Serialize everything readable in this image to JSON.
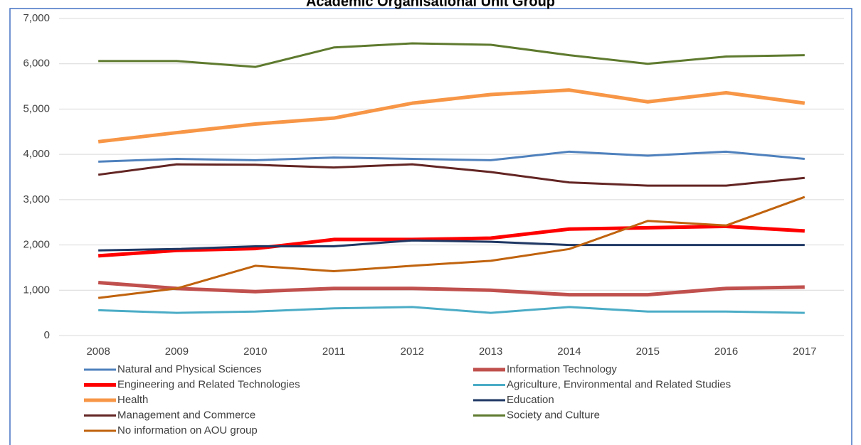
{
  "chart_data": {
    "type": "line",
    "title": "Academic Organisational Unit Group",
    "categories": [
      "2008",
      "2009",
      "2010",
      "2011",
      "2012",
      "2013",
      "2014",
      "2015",
      "2016",
      "2017"
    ],
    "ylim": [
      0,
      7000
    ],
    "yticks": [
      0,
      {
        "value": 1000,
        "label": "1,000"
      },
      {
        "value": 2000,
        "label": "2,000"
      },
      {
        "value": 3000,
        "label": "3,000"
      },
      {
        "value": 4000,
        "label": "4,000"
      },
      {
        "value": 5000,
        "label": "5,000"
      },
      {
        "value": 6000,
        "label": "6,000"
      },
      {
        "value": 7000,
        "label": "7,000"
      }
    ],
    "grid": true,
    "legend": "bottom",
    "series": [
      {
        "name": "Natural and Physical Sciences",
        "color": "#4f81bd",
        "width": 3,
        "values": [
          3840,
          3900,
          3870,
          3930,
          3900,
          3870,
          4060,
          3970,
          4060,
          3900
        ]
      },
      {
        "name": "Information Technology",
        "color": "#c0504d",
        "width": 5,
        "values": [
          1170,
          1040,
          970,
          1040,
          1040,
          1000,
          900,
          900,
          1040,
          1070
        ]
      },
      {
        "name": "Engineering and Related Technologies",
        "color": "#ff0000",
        "width": 5,
        "values": [
          1760,
          1880,
          1920,
          2120,
          2120,
          2150,
          2350,
          2380,
          2410,
          2310
        ]
      },
      {
        "name": "Agriculture, Environmental and Related Studies",
        "color": "#4bacc6",
        "width": 3,
        "values": [
          560,
          500,
          530,
          600,
          630,
          500,
          630,
          530,
          530,
          500
        ]
      },
      {
        "name": "Health",
        "color": "#f79646",
        "width": 5,
        "values": [
          4280,
          4480,
          4670,
          4800,
          5130,
          5320,
          5420,
          5160,
          5360,
          5130
        ]
      },
      {
        "name": "Education",
        "color": "#1f3864",
        "width": 3,
        "values": [
          1880,
          1910,
          1970,
          1970,
          2100,
          2070,
          2000,
          2000,
          2000,
          2000
        ]
      },
      {
        "name": "Management and Commerce",
        "color": "#632523",
        "width": 3,
        "values": [
          3550,
          3780,
          3770,
          3710,
          3780,
          3610,
          3380,
          3310,
          3310,
          3480
        ]
      },
      {
        "name": "Society and Culture",
        "color": "#5e7a2e",
        "width": 3,
        "values": [
          6060,
          6060,
          5930,
          6360,
          6450,
          6420,
          6190,
          6000,
          6160,
          6190
        ]
      },
      {
        "name": "No information on AOU group",
        "color": "#c0630e",
        "width": 3,
        "values": [
          830,
          1040,
          1540,
          1420,
          1540,
          1650,
          1910,
          2530,
          2430,
          3060
        ]
      }
    ]
  }
}
